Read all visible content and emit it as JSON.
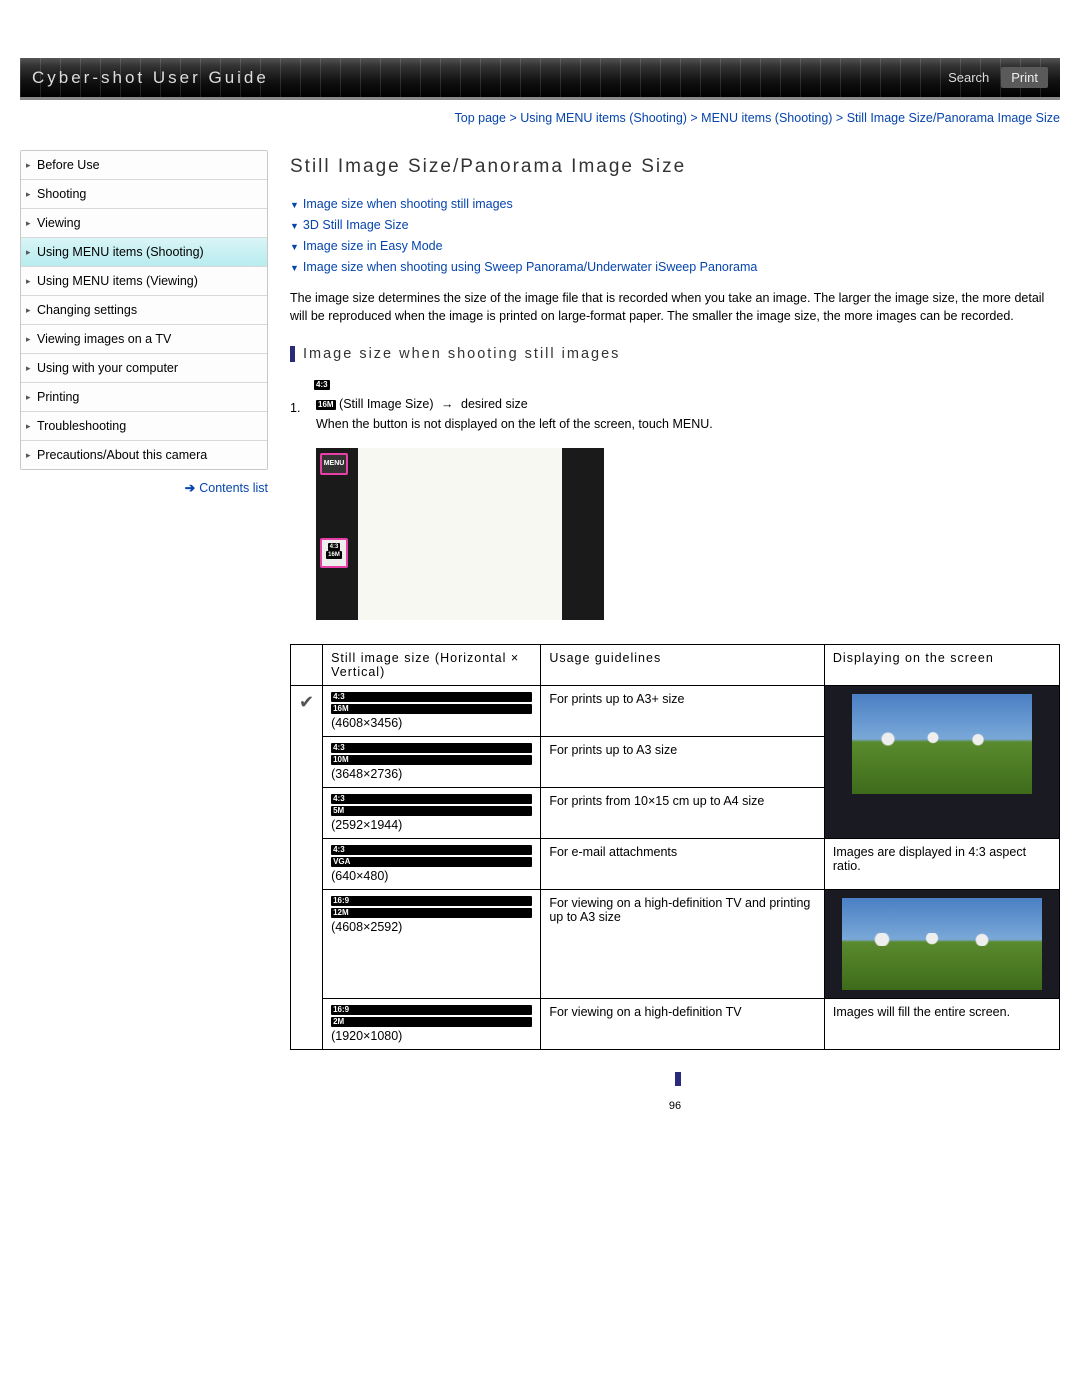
{
  "header": {
    "title": "Cyber-shot User Guide",
    "search": "Search",
    "print": "Print"
  },
  "breadcrumb": "Top page > Using MENU items (Shooting) > MENU items (Shooting) > Still Image Size/Panorama Image Size",
  "sidebar": {
    "items": [
      "Before Use",
      "Shooting",
      "Viewing",
      "Using MENU items (Shooting)",
      "Using MENU items (Viewing)",
      "Changing settings",
      "Viewing images on a TV",
      "Using with your computer",
      "Printing",
      "Troubleshooting",
      "Precautions/About this camera"
    ],
    "active_index": 3,
    "contents_list": "Contents list"
  },
  "page_title": "Still Image Size/Panorama Image Size",
  "jump_links": [
    "Image size when shooting still images",
    "3D Still Image Size",
    "Image size in Easy Mode",
    "Image size when shooting using Sweep Panorama/Underwater iSweep Panorama"
  ],
  "intro": "The image size determines the size of the image file that is recorded when you take an image. The larger the image size, the more detail will be reproduced when the image is printed on large-format paper. The smaller the image size, the more images can be recorded.",
  "section_heading": "Image size when shooting still images",
  "step": {
    "top_badge": "4:3",
    "num": "1.",
    "size_badge": "16M",
    "label": "(Still Image Size)",
    "arrow": "→",
    "desired": "desired size",
    "note": "When the button is not displayed on the left of the screen, touch MENU."
  },
  "camera_menu_label": "MENU",
  "camera_size_label1": "4:3",
  "camera_size_label2": "16M",
  "table": {
    "headers": [
      "Still image size (Horizontal × Vertical)",
      "Usage guidelines",
      "Displaying on the screen"
    ],
    "rows": [
      {
        "ratio": "4:3",
        "mp": "16M",
        "res": "(4608×3456)",
        "usage": "For prints up to A3+ size",
        "screen_group": 1,
        "checked": true
      },
      {
        "ratio": "4:3",
        "mp": "10M",
        "res": "(3648×2736)",
        "usage": "For prints up to A3 size",
        "screen_group": 1
      },
      {
        "ratio": "4:3",
        "mp": "5M",
        "res": "(2592×1944)",
        "usage": "For prints from 10×15 cm up to A4 size",
        "screen_group": 1
      },
      {
        "ratio": "4:3",
        "mp": "VGA",
        "res": "(640×480)",
        "usage": "For e-mail attachments",
        "screen_group": 1,
        "screen_text": "Images are displayed in 4:3 aspect ratio."
      },
      {
        "ratio": "16:9",
        "mp": "12M",
        "res": "(4608×2592)",
        "usage": "For viewing on a high-definition TV and printing up to A3 size",
        "screen_group": 2
      },
      {
        "ratio": "16:9",
        "mp": "2M",
        "res": "(1920×1080)",
        "usage": "For viewing on a high-definition TV",
        "screen_group": 2,
        "screen_text": "Images will fill the entire screen."
      }
    ],
    "screen_caption_43": "Images are displayed in 4:3 aspect ratio.",
    "screen_caption_169": "Images will fill the entire screen."
  },
  "page_number": "96"
}
